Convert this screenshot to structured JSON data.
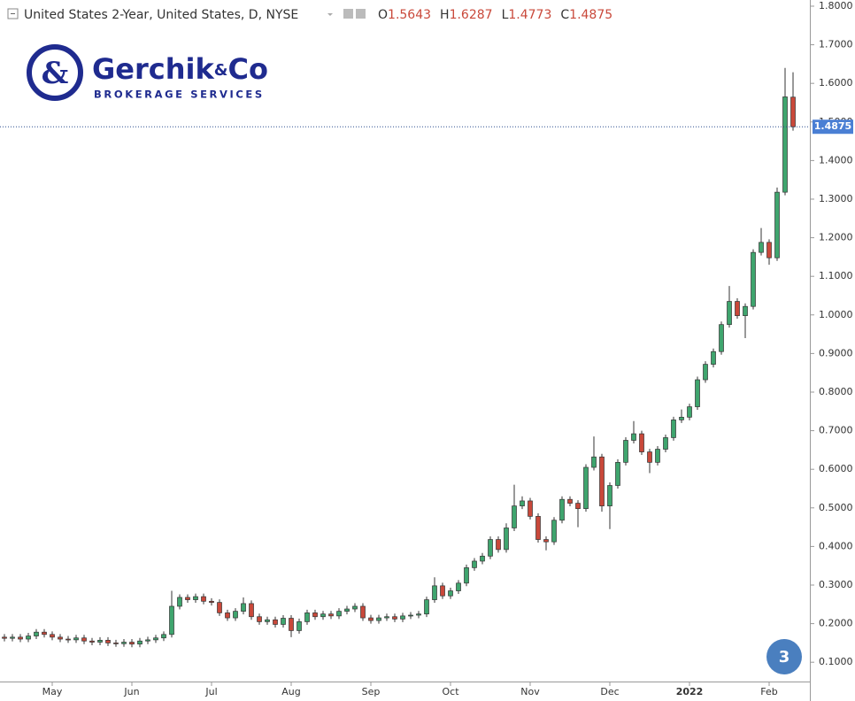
{
  "chart_data": {
    "type": "candlestick",
    "title": "United States 2-Year, United States, D, NYSE",
    "ohlc_labels": [
      "O",
      "H",
      "L",
      "C"
    ],
    "categories": [
      null,
      null,
      null,
      null,
      null,
      null,
      "May",
      null,
      null,
      null,
      null,
      null,
      null,
      null,
      null,
      null,
      "Jun",
      null,
      null,
      null,
      null,
      null,
      null,
      null,
      null,
      null,
      "Jul",
      null,
      null,
      null,
      null,
      null,
      null,
      null,
      null,
      null,
      "Aug",
      null,
      null,
      null,
      null,
      null,
      null,
      null,
      null,
      null,
      "Sep",
      null,
      null,
      null,
      null,
      null,
      null,
      null,
      null,
      null,
      "Oct",
      null,
      null,
      null,
      null,
      null,
      null,
      null,
      null,
      null,
      "Nov",
      null,
      null,
      null,
      null,
      null,
      null,
      null,
      null,
      null,
      "Dec",
      null,
      null,
      null,
      null,
      null,
      null,
      null,
      null,
      null,
      "2022",
      null,
      null,
      null,
      null,
      null,
      null,
      null,
      null,
      null,
      "Feb",
      null,
      null,
      null
    ],
    "open": [
      0.165,
      0.162,
      0.165,
      0.16,
      0.168,
      0.178,
      0.172,
      0.165,
      0.16,
      0.158,
      0.163,
      0.155,
      0.152,
      0.157,
      0.15,
      0.148,
      0.152,
      0.147,
      0.155,
      0.158,
      0.163,
      0.172,
      0.245,
      0.268,
      0.262,
      0.27,
      0.258,
      0.255,
      0.228,
      0.215,
      0.232,
      0.252,
      0.218,
      0.205,
      0.21,
      0.198,
      0.214,
      0.182,
      0.205,
      0.228,
      0.218,
      0.225,
      0.22,
      0.232,
      0.238,
      0.245,
      0.215,
      0.208,
      0.215,
      0.218,
      0.212,
      0.22,
      0.222,
      0.225,
      0.262,
      0.298,
      0.272,
      0.285,
      0.305,
      0.345,
      0.362,
      0.375,
      0.418,
      0.392,
      0.448,
      0.505,
      0.518,
      0.478,
      0.418,
      0.412,
      0.468,
      0.522,
      0.512,
      0.498,
      0.605,
      0.632,
      0.505,
      0.558,
      0.618,
      0.675,
      0.692,
      0.645,
      0.618,
      0.652,
      0.682,
      0.728,
      0.735,
      0.762,
      0.832,
      0.872,
      0.905,
      0.975,
      1.035,
      0.998,
      1.022,
      1.162,
      1.188,
      1.148,
      1.318,
      1.5643
    ],
    "high": [
      0.173,
      0.173,
      0.173,
      0.176,
      0.186,
      0.186,
      0.18,
      0.173,
      0.168,
      0.171,
      0.171,
      0.163,
      0.165,
      0.165,
      0.158,
      0.16,
      0.16,
      0.163,
      0.166,
      0.171,
      0.18,
      0.285,
      0.276,
      0.276,
      0.278,
      0.278,
      0.266,
      0.263,
      0.236,
      0.24,
      0.268,
      0.26,
      0.226,
      0.218,
      0.218,
      0.222,
      0.222,
      0.213,
      0.236,
      0.236,
      0.233,
      0.233,
      0.24,
      0.246,
      0.253,
      0.253,
      0.223,
      0.223,
      0.226,
      0.226,
      0.228,
      0.23,
      0.233,
      0.27,
      0.32,
      0.306,
      0.293,
      0.313,
      0.353,
      0.37,
      0.383,
      0.426,
      0.426,
      0.46,
      0.56,
      0.53,
      0.526,
      0.486,
      0.426,
      0.476,
      0.53,
      0.53,
      0.52,
      0.613,
      0.685,
      0.64,
      0.566,
      0.626,
      0.683,
      0.725,
      0.7,
      0.653,
      0.66,
      0.69,
      0.736,
      0.755,
      0.77,
      0.84,
      0.88,
      0.913,
      0.983,
      1.075,
      1.043,
      1.03,
      1.17,
      1.225,
      1.196,
      1.33,
      1.64,
      1.6287
    ],
    "low": [
      0.154,
      0.154,
      0.152,
      0.152,
      0.16,
      0.164,
      0.157,
      0.152,
      0.15,
      0.15,
      0.147,
      0.144,
      0.144,
      0.142,
      0.14,
      0.14,
      0.139,
      0.139,
      0.147,
      0.15,
      0.155,
      0.164,
      0.237,
      0.254,
      0.254,
      0.25,
      0.247,
      0.22,
      0.207,
      0.207,
      0.224,
      0.21,
      0.197,
      0.197,
      0.19,
      0.19,
      0.165,
      0.174,
      0.197,
      0.21,
      0.21,
      0.212,
      0.212,
      0.224,
      0.23,
      0.207,
      0.2,
      0.2,
      0.207,
      0.204,
      0.204,
      0.212,
      0.214,
      0.217,
      0.254,
      0.264,
      0.264,
      0.277,
      0.297,
      0.337,
      0.354,
      0.367,
      0.384,
      0.384,
      0.44,
      0.497,
      0.47,
      0.41,
      0.39,
      0.404,
      0.46,
      0.504,
      0.45,
      0.49,
      0.597,
      0.49,
      0.445,
      0.55,
      0.61,
      0.667,
      0.637,
      0.59,
      0.61,
      0.644,
      0.674,
      0.72,
      0.727,
      0.754,
      0.824,
      0.864,
      0.897,
      0.967,
      0.99,
      0.94,
      1.014,
      1.154,
      1.13,
      1.14,
      1.31,
      1.4773
    ],
    "close": [
      0.162,
      0.165,
      0.16,
      0.168,
      0.178,
      0.172,
      0.165,
      0.16,
      0.158,
      0.163,
      0.155,
      0.152,
      0.157,
      0.15,
      0.148,
      0.152,
      0.147,
      0.155,
      0.158,
      0.163,
      0.172,
      0.245,
      0.268,
      0.262,
      0.27,
      0.258,
      0.255,
      0.228,
      0.215,
      0.232,
      0.252,
      0.218,
      0.205,
      0.21,
      0.198,
      0.214,
      0.182,
      0.205,
      0.228,
      0.218,
      0.225,
      0.22,
      0.232,
      0.238,
      0.245,
      0.215,
      0.208,
      0.215,
      0.218,
      0.212,
      0.22,
      0.222,
      0.225,
      0.262,
      0.298,
      0.272,
      0.285,
      0.305,
      0.345,
      0.362,
      0.375,
      0.418,
      0.392,
      0.448,
      0.505,
      0.518,
      0.478,
      0.418,
      0.412,
      0.468,
      0.522,
      0.512,
      0.498,
      0.605,
      0.632,
      0.505,
      0.558,
      0.618,
      0.675,
      0.692,
      0.645,
      0.618,
      0.652,
      0.682,
      0.728,
      0.735,
      0.762,
      0.832,
      0.872,
      0.905,
      0.975,
      1.035,
      0.998,
      1.022,
      1.162,
      1.188,
      1.148,
      1.318,
      1.565,
      1.4875
    ],
    "up_color": "#3fa56e",
    "down_color": "#c9483a",
    "last_color": "#4a7fd4",
    "ylim": [
      0.05,
      1.816
    ],
    "yticks": [
      {
        "value": 0.1,
        "label": "0.1000"
      },
      {
        "value": 0.2,
        "label": "0.2000"
      },
      {
        "value": 0.3,
        "label": "0.3000"
      },
      {
        "value": 0.4,
        "label": "0.4000"
      },
      {
        "value": 0.5,
        "label": "0.5000"
      },
      {
        "value": 0.6,
        "label": "0.6000"
      },
      {
        "value": 0.7,
        "label": "0.7000"
      },
      {
        "value": 0.8,
        "label": "0.8000"
      },
      {
        "value": 0.9,
        "label": "0.9000"
      },
      {
        "value": 1.0,
        "label": "1.0000"
      },
      {
        "value": 1.1,
        "label": "1.1000"
      },
      {
        "value": 1.2,
        "label": "1.2000"
      },
      {
        "value": 1.3,
        "label": "1.3000"
      },
      {
        "value": 1.4,
        "label": "1.4000"
      },
      {
        "value": 1.5,
        "label": "1.5000"
      },
      {
        "value": 1.6,
        "label": "1.6000"
      },
      {
        "value": 1.7,
        "label": "1.7000"
      },
      {
        "value": 1.8,
        "label": "1.8000"
      }
    ]
  },
  "logo": {
    "name": "Gerchik",
    "amp": "&",
    "suffix": "Co",
    "tagline": "BROKERAGE SERVICES"
  },
  "badge": "3"
}
